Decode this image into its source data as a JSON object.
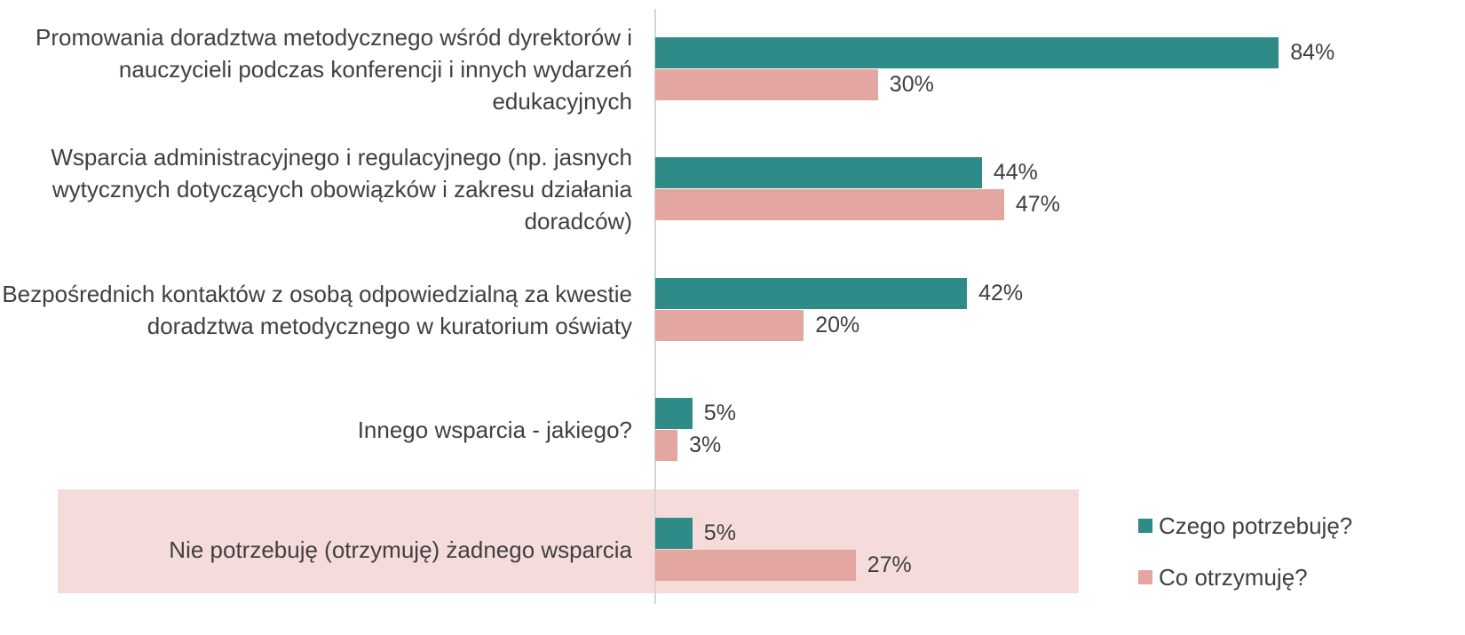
{
  "chart_data": {
    "type": "bar",
    "orientation": "horizontal",
    "categories": [
      "Promowania doradztwa metodycznego wśród dyrektorów i nauczycieli podczas konferencji i innych wydarzeń edukacyjnych",
      "Wsparcia administracyjnego i regulacyjnego (np. jasnych wytycznych dotyczących obowiązków i zakresu działania doradców)",
      "Bezpośrednich kontaktów z osobą odpowiedzialną za kwestie doradztwa metodycznego w kuratorium oświaty",
      "Innego wsparcia - jakiego?",
      "Nie potrzebuję (otrzymuję) żadnego wsparcia"
    ],
    "series": [
      {
        "name": "Czego potrzebuję?",
        "color": "#2e8b88",
        "values": [
          84,
          44,
          42,
          5,
          5
        ],
        "value_labels": [
          "84%",
          "44%",
          "42%",
          "5%",
          "5%"
        ]
      },
      {
        "name": "Co otrzymuję?",
        "color": "#e3a6a1",
        "values": [
          30,
          47,
          20,
          3,
          27
        ],
        "value_labels": [
          "30%",
          "47%",
          "20%",
          "3%",
          "27%"
        ]
      }
    ]
  }
}
